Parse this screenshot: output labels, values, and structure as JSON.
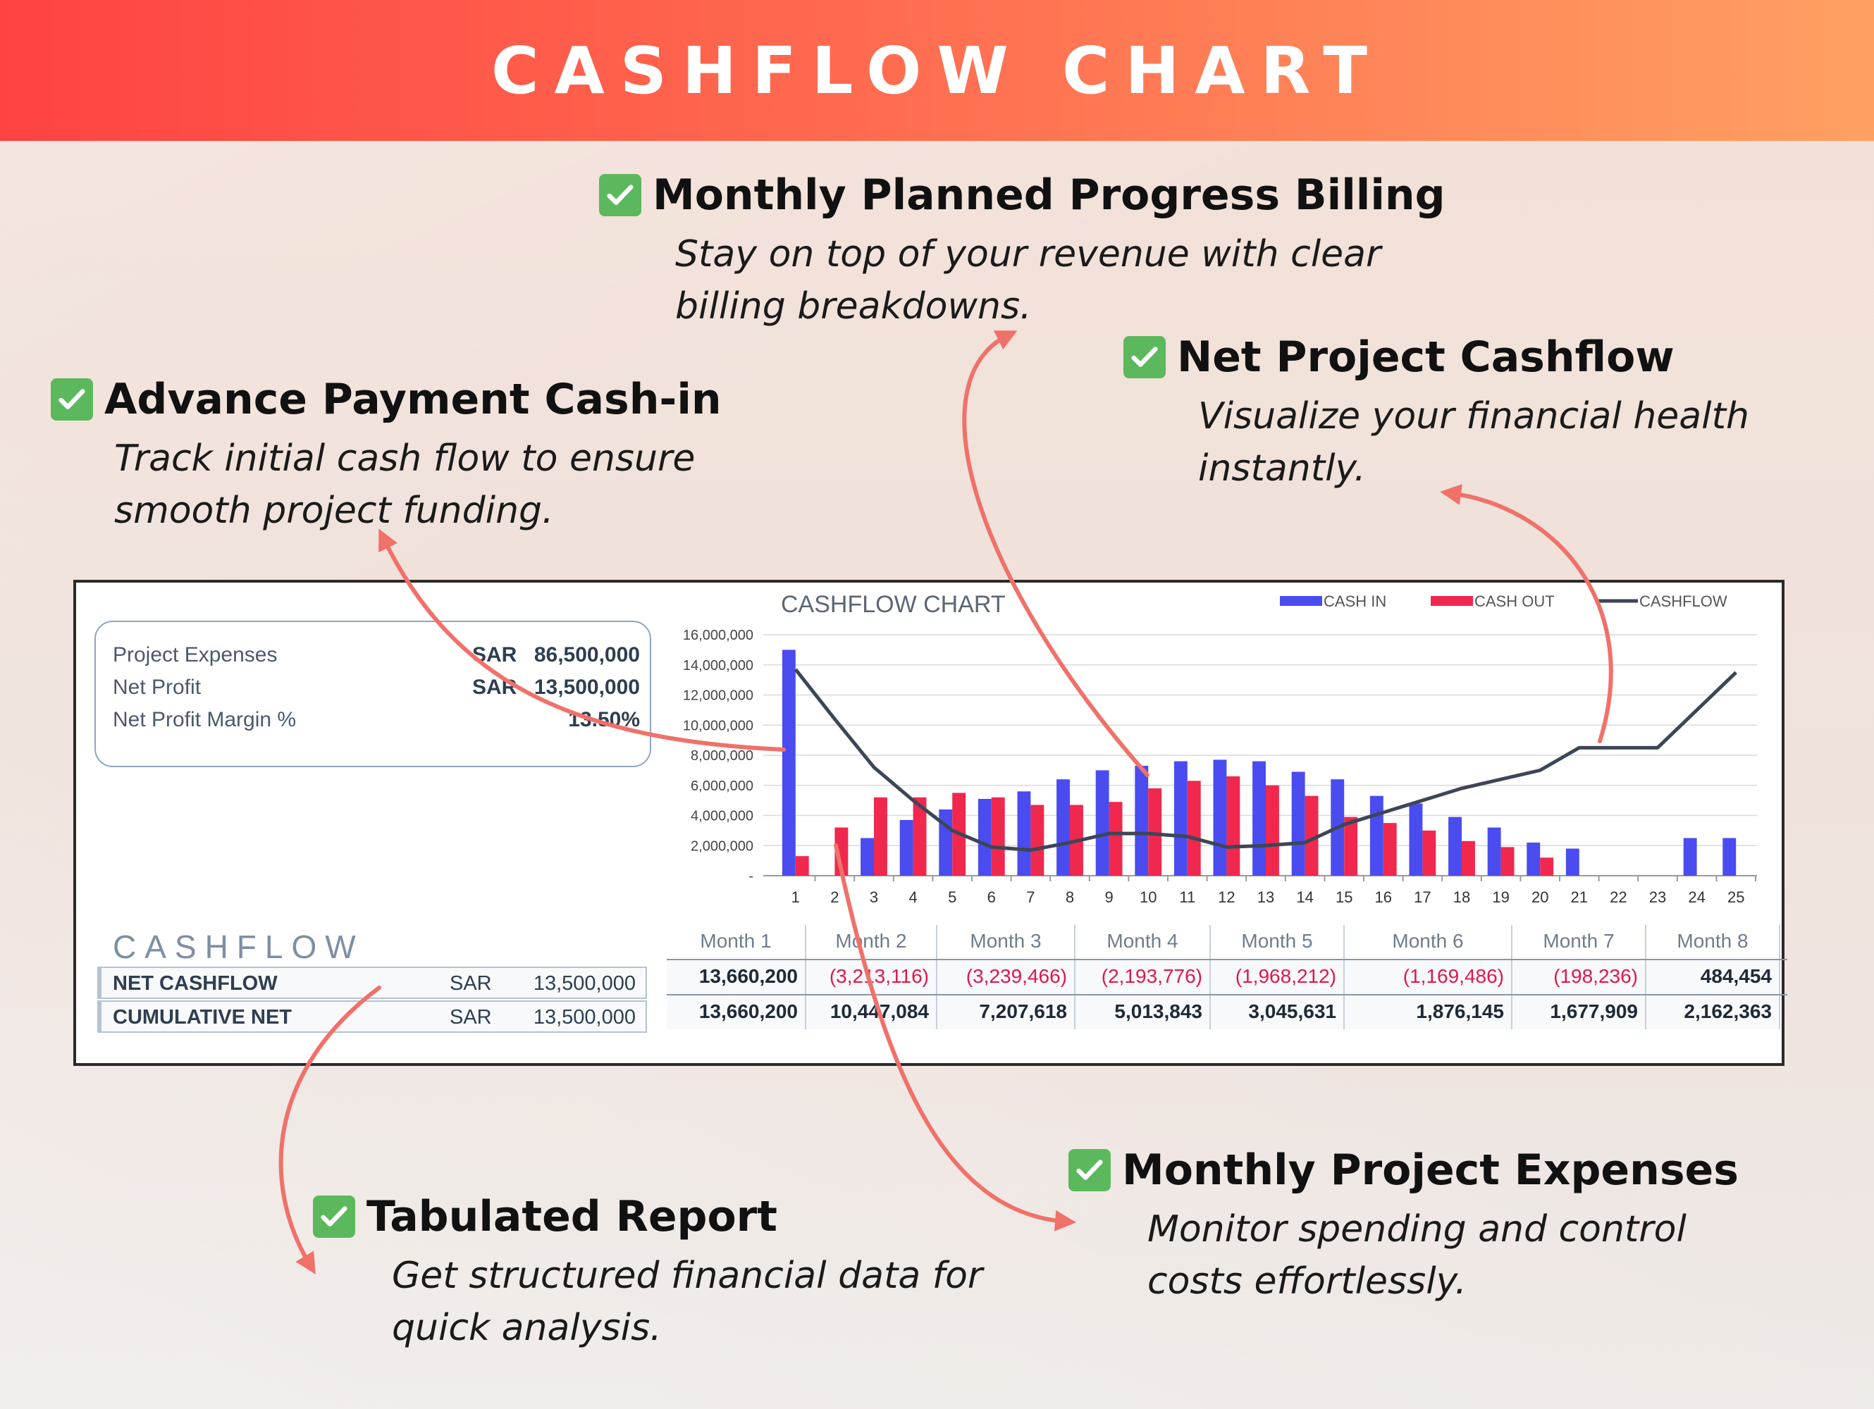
{
  "header": {
    "title": "CASHFLOW CHART"
  },
  "callouts": {
    "billing": {
      "title": "Monthly Planned Progress Billing",
      "desc1": "Stay on top of your revenue with clear",
      "desc2": "billing breakdowns."
    },
    "net": {
      "title": "Net Project Cashflow",
      "desc1": "Visualize your financial health",
      "desc2": "instantly."
    },
    "advance": {
      "title": "Advance Payment Cash-in",
      "desc1": "Track initial cash flow to ensure",
      "desc2": "smooth project funding."
    },
    "tabulated": {
      "title": "Tabulated Report",
      "desc1": "Get structured financial data for",
      "desc2": "quick analysis."
    },
    "expenses": {
      "title": "Monthly Project Expenses",
      "desc1": "Monitor spending and control",
      "desc2": "costs effortlessly."
    }
  },
  "summary": {
    "rows": [
      {
        "label": "Project Expenses",
        "currency": "SAR",
        "value": "86,500,000"
      },
      {
        "label": "Net Profit",
        "currency": "SAR",
        "value": "13,500,000"
      },
      {
        "label": "Net Profit Margin %",
        "currency": "",
        "value": "13.50%"
      }
    ]
  },
  "cashflow_table": {
    "title": "CASHFLOW",
    "rows": [
      {
        "label": "NET CASHFLOW",
        "currency": "SAR",
        "value": "13,500,000"
      },
      {
        "label": "CUMULATIVE NET",
        "currency": "SAR",
        "value": "13,500,000"
      }
    ],
    "months": [
      "Month 1",
      "Month 2",
      "Month 3",
      "Month 4",
      "Month 5",
      "Month 6",
      "Month 7",
      "Month 8"
    ],
    "net_cashflow": [
      "13,660,200",
      "(3,213,116)",
      "(3,239,466)",
      "(2,193,776)",
      "(1,968,212)",
      "(1,169,486)",
      "(198,236)",
      "484,454"
    ],
    "cumulative_net": [
      "13,660,200",
      "10,447,084",
      "7,207,618",
      "5,013,843",
      "3,045,631",
      "1,876,145",
      "1,677,909",
      "2,162,363"
    ]
  },
  "colors": {
    "cash_in": "#4a4cf0",
    "cash_out": "#f0284e",
    "cashflow": "#3c4656",
    "arrow": "#f0716a",
    "check": "#5cb85c"
  },
  "chart_data": {
    "type": "bar",
    "title": "CASHFLOW CHART",
    "legend_position": "top-right",
    "grid": true,
    "categories": [
      "1",
      "2",
      "3",
      "4",
      "5",
      "6",
      "7",
      "8",
      "9",
      "10",
      "11",
      "12",
      "13",
      "14",
      "15",
      "16",
      "17",
      "18",
      "19",
      "20",
      "21",
      "22",
      "23",
      "24",
      "25"
    ],
    "ylim": [
      0,
      16000000
    ],
    "yticks": [
      "-",
      "2,000,000",
      "4,000,000",
      "6,000,000",
      "8,000,000",
      "10,000,000",
      "12,000,000",
      "14,000,000",
      "16,000,000"
    ],
    "series": [
      {
        "name": "CASH IN",
        "type": "bar",
        "values": [
          15000000,
          0,
          2500000,
          3700000,
          4400000,
          5100000,
          5600000,
          6400000,
          7000000,
          7300000,
          7600000,
          7700000,
          7600000,
          6900000,
          6400000,
          5300000,
          4800000,
          3900000,
          3200000,
          2200000,
          1800000,
          0,
          0,
          2500000,
          2500000
        ]
      },
      {
        "name": "CASH OUT",
        "type": "bar",
        "values": [
          1300000,
          3200000,
          5200000,
          5200000,
          5500000,
          5200000,
          4700000,
          4700000,
          4900000,
          5800000,
          6300000,
          6600000,
          6000000,
          5300000,
          3900000,
          3500000,
          3000000,
          2300000,
          1900000,
          1200000,
          0,
          0,
          0,
          0,
          0
        ]
      },
      {
        "name": "CASHFLOW",
        "type": "line",
        "values": [
          13700000,
          10400000,
          7200000,
          5000000,
          3000000,
          1900000,
          1700000,
          2200000,
          2800000,
          2800000,
          2600000,
          1900000,
          2000000,
          2200000,
          3400000,
          4200000,
          5000000,
          5800000,
          6400000,
          7000000,
          8500000,
          8500000,
          8500000,
          11000000,
          13500000
        ]
      }
    ]
  }
}
